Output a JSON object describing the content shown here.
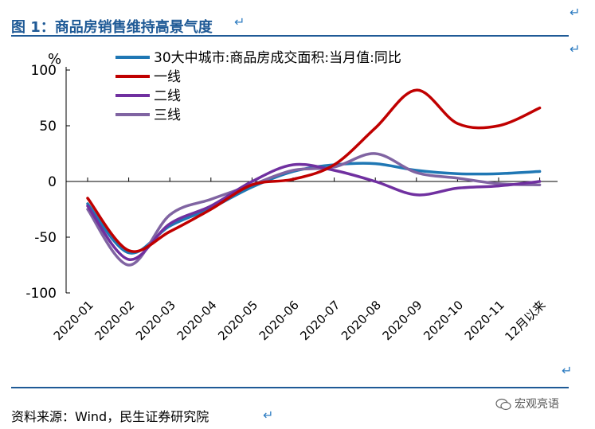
{
  "figure": {
    "title": "图 1：商品房销售维持高景气度",
    "source": "资料来源：Wind，民生证券研究院",
    "watermark": "宏观亮语",
    "unit": "%"
  },
  "chart_data": {
    "type": "line",
    "categories": [
      "2020-01",
      "2020-02",
      "2020-03",
      "2020-04",
      "2020-05",
      "2020-06",
      "2020-07",
      "2020-08",
      "2020-09",
      "2020-10",
      "2020-11",
      "12月以来"
    ],
    "ylim": [
      -100,
      100
    ],
    "yticks": [
      100,
      50,
      0,
      -50,
      -100
    ],
    "ytick_labels": [
      "100",
      "50",
      "0",
      "-50",
      "-100"
    ],
    "legend_position": "top",
    "series": [
      {
        "name": "30大中城市:商品房成交面积:当月值:同比",
        "color": "#1f77b4",
        "values": [
          -20,
          -64,
          -40,
          -24,
          -5,
          9,
          15,
          16,
          10,
          7,
          7,
          9
        ]
      },
      {
        "name": "一线",
        "color": "#c00000",
        "values": [
          -15,
          -62,
          -45,
          -25,
          -3,
          2,
          15,
          48,
          82,
          52,
          50,
          66
        ]
      },
      {
        "name": "二线",
        "color": "#7030a0",
        "values": [
          -22,
          -70,
          -38,
          -22,
          0,
          15,
          10,
          0,
          -12,
          -6,
          -4,
          0
        ]
      },
      {
        "name": "三线",
        "color": "#8064a2",
        "values": [
          -25,
          -75,
          -30,
          -16,
          -3,
          10,
          13,
          25,
          8,
          3,
          -2,
          -3
        ]
      }
    ]
  }
}
